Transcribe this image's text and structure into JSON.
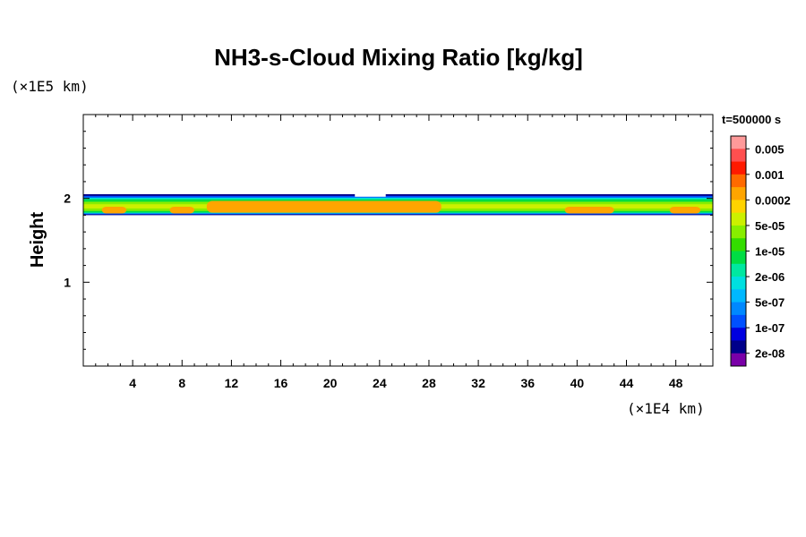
{
  "chart_data": {
    "type": "heatmap",
    "title": "NH3-s-Cloud Mixing Ratio [kg/kg]",
    "ylabel": "Height",
    "xlabel": "",
    "x_unit": "(×1E4 km)",
    "y_unit": "(×1E5 km)",
    "time_label": "t=500000 s",
    "xlim": [
      0,
      51
    ],
    "ylim": [
      0,
      3
    ],
    "x_ticks": [
      4,
      8,
      12,
      16,
      20,
      24,
      28,
      32,
      36,
      40,
      44,
      48
    ],
    "y_ticks": [
      1,
      2
    ],
    "grid": false,
    "legend": {
      "placement": "right",
      "labels": [
        "0.005",
        "0.001",
        "0.0002",
        "5e-05",
        "1e-05",
        "2e-06",
        "5e-07",
        "1e-07",
        "2e-08"
      ],
      "colors": [
        "#ff9a9a",
        "#ff4f4f",
        "#ff1a00",
        "#ff6a00",
        "#ffa500",
        "#ffd300",
        "#ccf000",
        "#88ee00",
        "#33dd00",
        "#00dd44",
        "#00e8a0",
        "#00e0e0",
        "#00b8ff",
        "#0088ff",
        "#0050ff",
        "#0000e0",
        "#00008a",
        "#7a00a8"
      ]
    },
    "cloud_layer": {
      "outer_base": 1.8,
      "outer_top": 2.05,
      "core_base": 1.83,
      "core_top": 1.97,
      "core_x_range": [
        10,
        29
      ],
      "gap_x_range": [
        22,
        24.5
      ],
      "core_level": "0.0002",
      "outer_level": "2e-08"
    }
  }
}
